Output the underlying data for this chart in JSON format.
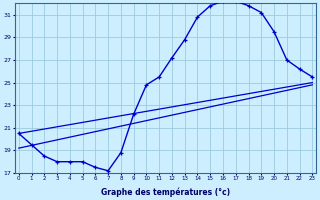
{
  "xlabel": "Graphe des températures (°c)",
  "bg_color": "#cceeff",
  "line_color": "#0000cc",
  "grid_color": "#99ccdd",
  "temps": [
    20.5,
    19.5,
    18.5,
    18.0,
    18.0,
    18.0,
    17.5,
    17.2,
    18.8,
    22.2,
    24.8,
    25.5,
    27.2,
    28.8,
    30.8,
    31.8,
    32.2,
    32.2,
    31.8,
    31.2,
    29.5,
    27.0,
    26.2,
    25.5
  ],
  "hours": [
    0,
    1,
    2,
    3,
    4,
    5,
    6,
    7,
    8,
    9,
    10,
    11,
    12,
    13,
    14,
    15,
    16,
    17,
    18,
    19,
    20,
    21,
    22,
    23
  ],
  "trend1_x": [
    0,
    23
  ],
  "trend1_y": [
    20.5,
    25.0
  ],
  "trend2_x": [
    0,
    23
  ],
  "trend2_y": [
    19.2,
    24.8
  ],
  "ylim": [
    17,
    32
  ],
  "xlim": [
    -0.3,
    23.3
  ],
  "yticks": [
    17,
    19,
    21,
    23,
    25,
    27,
    29,
    31
  ],
  "xticks": [
    0,
    1,
    2,
    3,
    4,
    5,
    6,
    7,
    8,
    9,
    10,
    11,
    12,
    13,
    14,
    15,
    16,
    17,
    18,
    19,
    20,
    21,
    22,
    23
  ]
}
